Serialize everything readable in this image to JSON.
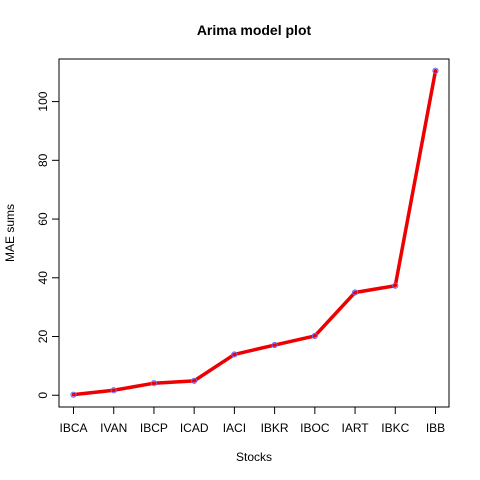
{
  "chart_data": {
    "type": "line",
    "title": "Arima model plot",
    "xlabel": "Stocks",
    "ylabel": "MAE sums",
    "categories": [
      "IBCA",
      "IVAN",
      "IBCP",
      "ICAD",
      "IACI",
      "IBKR",
      "IBOC",
      "IART",
      "IBKC",
      "IBB"
    ],
    "values": [
      0.2,
      1.7,
      4.1,
      4.9,
      13.9,
      17.1,
      20.2,
      35.0,
      37.3,
      110.5
    ],
    "y_ticks": [
      0,
      20,
      40,
      60,
      80,
      100
    ],
    "ylim": [
      -4,
      114.5
    ],
    "grid": false,
    "colors": {
      "line": "#ee0000",
      "marker": "#6a6aff",
      "axis": "#000000"
    }
  }
}
